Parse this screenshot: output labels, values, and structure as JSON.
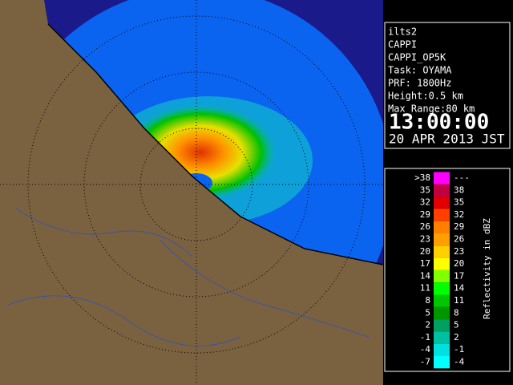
{
  "info": {
    "lines": [
      "ilts2",
      "CAPPI",
      "CAPPI_OP5K",
      "Task: OYAMA",
      "PRF: 1800Hz",
      "Height:0.5 km",
      "Max Range:80 km"
    ],
    "time": "13:00:00",
    "date": "20 APR 2013 JST"
  },
  "legend": {
    "title": "Reflectivity in dBZ",
    "rows": [
      {
        "low": ">38",
        "high": "---",
        "color": "#ff00ff"
      },
      {
        "low": "35",
        "high": "38",
        "color": "#c00040"
      },
      {
        "low": "32",
        "high": "35",
        "color": "#e00000"
      },
      {
        "low": "29",
        "high": "32",
        "color": "#ff4000"
      },
      {
        "low": "26",
        "high": "29",
        "color": "#ff8000"
      },
      {
        "low": "23",
        "high": "26",
        "color": "#ffa000"
      },
      {
        "low": "20",
        "high": "23",
        "color": "#ffd000"
      },
      {
        "low": "17",
        "high": "20",
        "color": "#ffff00"
      },
      {
        "low": "14",
        "high": "17",
        "color": "#80ff00"
      },
      {
        "low": "11",
        "high": "14",
        "color": "#00ff00"
      },
      {
        "low": "8",
        "high": "11",
        "color": "#00c800"
      },
      {
        "low": "5",
        "high": "8",
        "color": "#009600"
      },
      {
        "low": "2",
        "high": "5",
        "color": "#00a060"
      },
      {
        "low": "-1",
        "high": "2",
        "color": "#00c0a0"
      },
      {
        "low": "-4",
        "high": "-1",
        "color": "#00e0e0"
      },
      {
        "low": "-7",
        "high": "-4",
        "color": "#00ffff"
      }
    ]
  }
}
